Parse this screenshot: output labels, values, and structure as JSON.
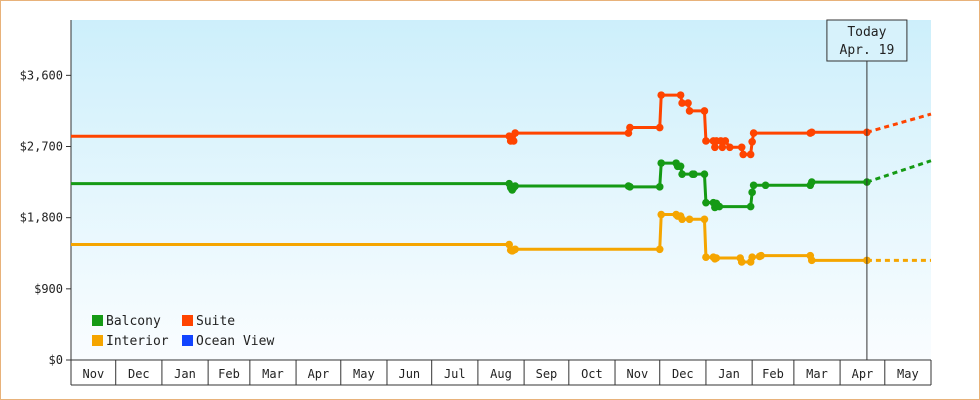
{
  "chart_data": {
    "type": "line",
    "title": "",
    "xlabel": "",
    "ylabel": "",
    "ylim": [
      0,
      4300
    ],
    "y_ticks": [
      {
        "value": 0,
        "label": "$0"
      },
      {
        "value": 900,
        "label": "$900"
      },
      {
        "value": 1800,
        "label": "$1,800"
      },
      {
        "value": 2700,
        "label": "$2,700"
      },
      {
        "value": 3600,
        "label": "$3,600"
      }
    ],
    "x_range": [
      "2021-11-01",
      "2023-06-01"
    ],
    "months": [
      "Nov",
      "Dec",
      "Jan",
      "Feb",
      "Mar",
      "Apr",
      "May",
      "Jun",
      "Jul",
      "Aug",
      "Sep",
      "Oct",
      "Nov",
      "Dec",
      "Jan",
      "Feb",
      "Mar",
      "Apr",
      "May"
    ],
    "month_starts": [
      "2021-11-01",
      "2021-12-01",
      "2022-01-01",
      "2022-02-01",
      "2022-03-01",
      "2022-04-01",
      "2022-05-01",
      "2022-06-01",
      "2022-07-01",
      "2022-08-01",
      "2022-09-01",
      "2022-10-01",
      "2022-11-01",
      "2022-12-01",
      "2023-01-01",
      "2023-02-01",
      "2023-03-01",
      "2023-04-01",
      "2023-05-01",
      "2023-06-01"
    ],
    "today": {
      "date": "2023-04-19",
      "label_line1": "Today",
      "label_line2": "Apr. 19"
    },
    "grid": false,
    "legend_position": "bottom-left",
    "series": [
      {
        "name": "Suite",
        "color": "#ff4400",
        "points": [
          [
            "2021-11-01",
            2830
          ],
          [
            "2022-08-22",
            2830
          ],
          [
            "2022-08-23",
            2770
          ],
          [
            "2022-08-24",
            2790
          ],
          [
            "2022-08-25",
            2770
          ],
          [
            "2022-08-26",
            2870
          ],
          [
            "2022-11-10",
            2870
          ],
          [
            "2022-11-11",
            2940
          ],
          [
            "2022-12-01",
            2940
          ],
          [
            "2022-12-02",
            3350
          ],
          [
            "2022-12-15",
            3350
          ],
          [
            "2022-12-16",
            3250
          ],
          [
            "2022-12-20",
            3250
          ],
          [
            "2022-12-21",
            3150
          ],
          [
            "2022-12-31",
            3150
          ],
          [
            "2023-01-01",
            2770
          ],
          [
            "2023-01-06",
            2770
          ],
          [
            "2023-01-07",
            2690
          ],
          [
            "2023-01-08",
            2770
          ],
          [
            "2023-01-11",
            2770
          ],
          [
            "2023-01-12",
            2690
          ],
          [
            "2023-01-14",
            2770
          ],
          [
            "2023-01-17",
            2690
          ],
          [
            "2023-01-25",
            2690
          ],
          [
            "2023-01-26",
            2600
          ],
          [
            "2023-01-31",
            2600
          ],
          [
            "2023-02-01",
            2760
          ],
          [
            "2023-02-02",
            2870
          ],
          [
            "2023-03-12",
            2870
          ],
          [
            "2023-03-13",
            2880
          ],
          [
            "2023-04-19",
            2880
          ]
        ],
        "projection": [
          [
            "2023-04-19",
            2880
          ],
          [
            "2023-06-01",
            3110
          ]
        ]
      },
      {
        "name": "Balcony",
        "color": "#159a15",
        "points": [
          [
            "2021-11-01",
            2230
          ],
          [
            "2022-08-22",
            2230
          ],
          [
            "2022-08-23",
            2180
          ],
          [
            "2022-08-24",
            2150
          ],
          [
            "2022-08-25",
            2180
          ],
          [
            "2022-08-26",
            2200
          ],
          [
            "2022-11-10",
            2200
          ],
          [
            "2022-11-11",
            2190
          ],
          [
            "2022-12-01",
            2190
          ],
          [
            "2022-12-02",
            2490
          ],
          [
            "2022-12-12",
            2490
          ],
          [
            "2022-12-13",
            2450
          ],
          [
            "2022-12-15",
            2450
          ],
          [
            "2022-12-16",
            2350
          ],
          [
            "2022-12-23",
            2350
          ],
          [
            "2022-12-24",
            2350
          ],
          [
            "2022-12-31",
            2350
          ],
          [
            "2023-01-01",
            1990
          ],
          [
            "2023-01-06",
            1990
          ],
          [
            "2023-01-07",
            1930
          ],
          [
            "2023-01-08",
            1980
          ],
          [
            "2023-01-10",
            1940
          ],
          [
            "2023-01-31",
            1940
          ],
          [
            "2023-02-01",
            2120
          ],
          [
            "2023-02-02",
            2210
          ],
          [
            "2023-02-10",
            2210
          ],
          [
            "2023-03-12",
            2210
          ],
          [
            "2023-03-13",
            2250
          ],
          [
            "2023-04-19",
            2250
          ]
        ],
        "projection": [
          [
            "2023-04-19",
            2250
          ],
          [
            "2023-06-01",
            2520
          ]
        ]
      },
      {
        "name": "Interior",
        "color": "#f5a500",
        "points": [
          [
            "2021-11-01",
            1460
          ],
          [
            "2022-08-22",
            1460
          ],
          [
            "2022-08-23",
            1390
          ],
          [
            "2022-08-24",
            1380
          ],
          [
            "2022-08-25",
            1390
          ],
          [
            "2022-08-26",
            1400
          ],
          [
            "2022-12-01",
            1400
          ],
          [
            "2022-12-02",
            1840
          ],
          [
            "2022-12-12",
            1840
          ],
          [
            "2022-12-13",
            1820
          ],
          [
            "2022-12-15",
            1820
          ],
          [
            "2022-12-16",
            1780
          ],
          [
            "2022-12-21",
            1780
          ],
          [
            "2022-12-31",
            1780
          ],
          [
            "2023-01-01",
            1300
          ],
          [
            "2023-01-06",
            1300
          ],
          [
            "2023-01-07",
            1280
          ],
          [
            "2023-01-08",
            1290
          ],
          [
            "2023-01-24",
            1290
          ],
          [
            "2023-01-25",
            1240
          ],
          [
            "2023-01-31",
            1240
          ],
          [
            "2023-02-01",
            1300
          ],
          [
            "2023-02-06",
            1310
          ],
          [
            "2023-02-07",
            1320
          ],
          [
            "2023-03-12",
            1320
          ],
          [
            "2023-03-13",
            1260
          ],
          [
            "2023-04-19",
            1260
          ]
        ],
        "projection": [
          [
            "2023-04-19",
            1260
          ],
          [
            "2023-06-01",
            1260
          ]
        ]
      },
      {
        "name": "Ocean View",
        "color": "#1144ff",
        "points": [],
        "projection": []
      }
    ],
    "legend": [
      {
        "name": "Balcony",
        "color": "#159a15"
      },
      {
        "name": "Suite",
        "color": "#ff4400"
      },
      {
        "name": "Interior",
        "color": "#f5a500"
      },
      {
        "name": "Ocean View",
        "color": "#1144ff"
      }
    ]
  }
}
